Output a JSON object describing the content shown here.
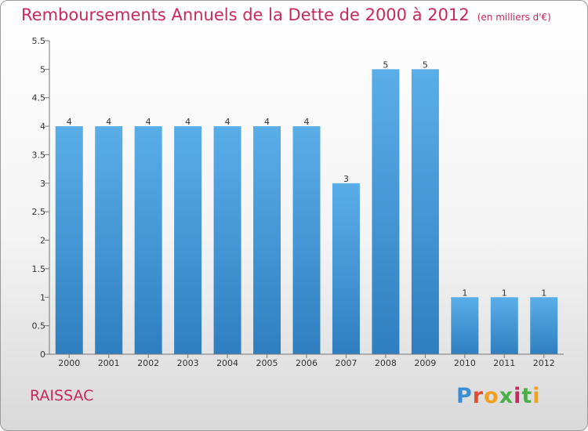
{
  "header": {
    "title": "Remboursements Annuels de la Dette de 2000 à 2012",
    "unit": "(en milliers d'€)"
  },
  "footer": {
    "city": "RAISSAC",
    "logo_text": "Proxiti"
  },
  "colors": {
    "title": "#c8285a",
    "bar_light": "#5aaee8",
    "bar_dark": "#2f7fc0"
  },
  "chart_data": {
    "type": "bar",
    "title": "Remboursements Annuels de la Dette de 2000 à 2012",
    "subtitle": "(en milliers d'€)",
    "xlabel": "",
    "ylabel": "",
    "categories": [
      "2000",
      "2001",
      "2002",
      "2003",
      "2004",
      "2005",
      "2006",
      "2007",
      "2008",
      "2009",
      "2010",
      "2011",
      "2012"
    ],
    "values": [
      4,
      4,
      4,
      4,
      4,
      4,
      4,
      3,
      5,
      5,
      1,
      1,
      1
    ],
    "data_labels": [
      "4",
      "4",
      "4",
      "4",
      "4",
      "4",
      "4",
      "3",
      "5",
      "5",
      "1",
      "1",
      "1"
    ],
    "ylim": [
      0,
      5.5
    ],
    "yticks": [
      0,
      0.5,
      1,
      1.5,
      2,
      2.5,
      3,
      3.5,
      4,
      4.5,
      5,
      5.5
    ],
    "ytick_labels": [
      "0",
      "0.5",
      "1",
      "1.5",
      "2",
      "2.5",
      "3",
      "3.5",
      "4",
      "4.5",
      "5",
      "5.5"
    ],
    "grid": false,
    "legend": "none"
  }
}
